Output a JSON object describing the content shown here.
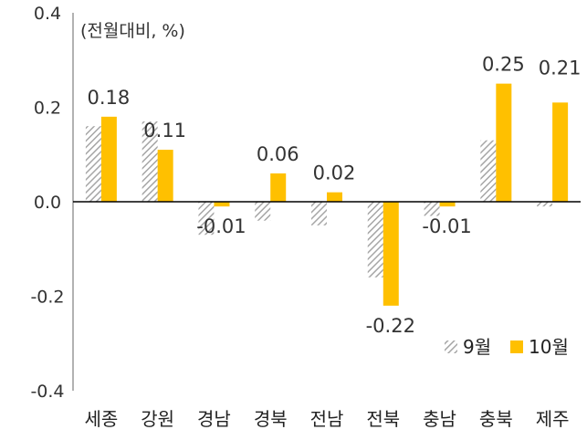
{
  "chart_data": {
    "type": "bar",
    "unit_label": "(전월대비, %)",
    "categories": [
      "세종",
      "강원",
      "경남",
      "경북",
      "전남",
      "전북",
      "충남",
      "충북",
      "제주"
    ],
    "series": [
      {
        "name": "9월",
        "values": [
          0.16,
          0.17,
          -0.07,
          -0.04,
          -0.05,
          -0.16,
          -0.03,
          0.13,
          -0.01
        ],
        "color": "#a6a6a6",
        "pattern": "diagonal-hatch"
      },
      {
        "name": "10월",
        "values": [
          0.18,
          0.11,
          -0.01,
          0.06,
          0.02,
          -0.22,
          -0.01,
          0.25,
          0.21
        ],
        "color": "#ffc000"
      }
    ],
    "data_labels": [
      "0.18",
      "0.11",
      "-0.01",
      "0.06",
      "0.02",
      "-0.22",
      "-0.01",
      "0.25",
      "0.21"
    ],
    "y_ticks": [
      "0.4",
      "0.2",
      "0.0",
      "-0.2",
      "-0.4"
    ],
    "y_tick_values": [
      0.4,
      0.2,
      0.0,
      -0.2,
      -0.4
    ],
    "ylim": [
      -0.4,
      0.4
    ],
    "grid": false,
    "legend_position": "bottom-right"
  }
}
